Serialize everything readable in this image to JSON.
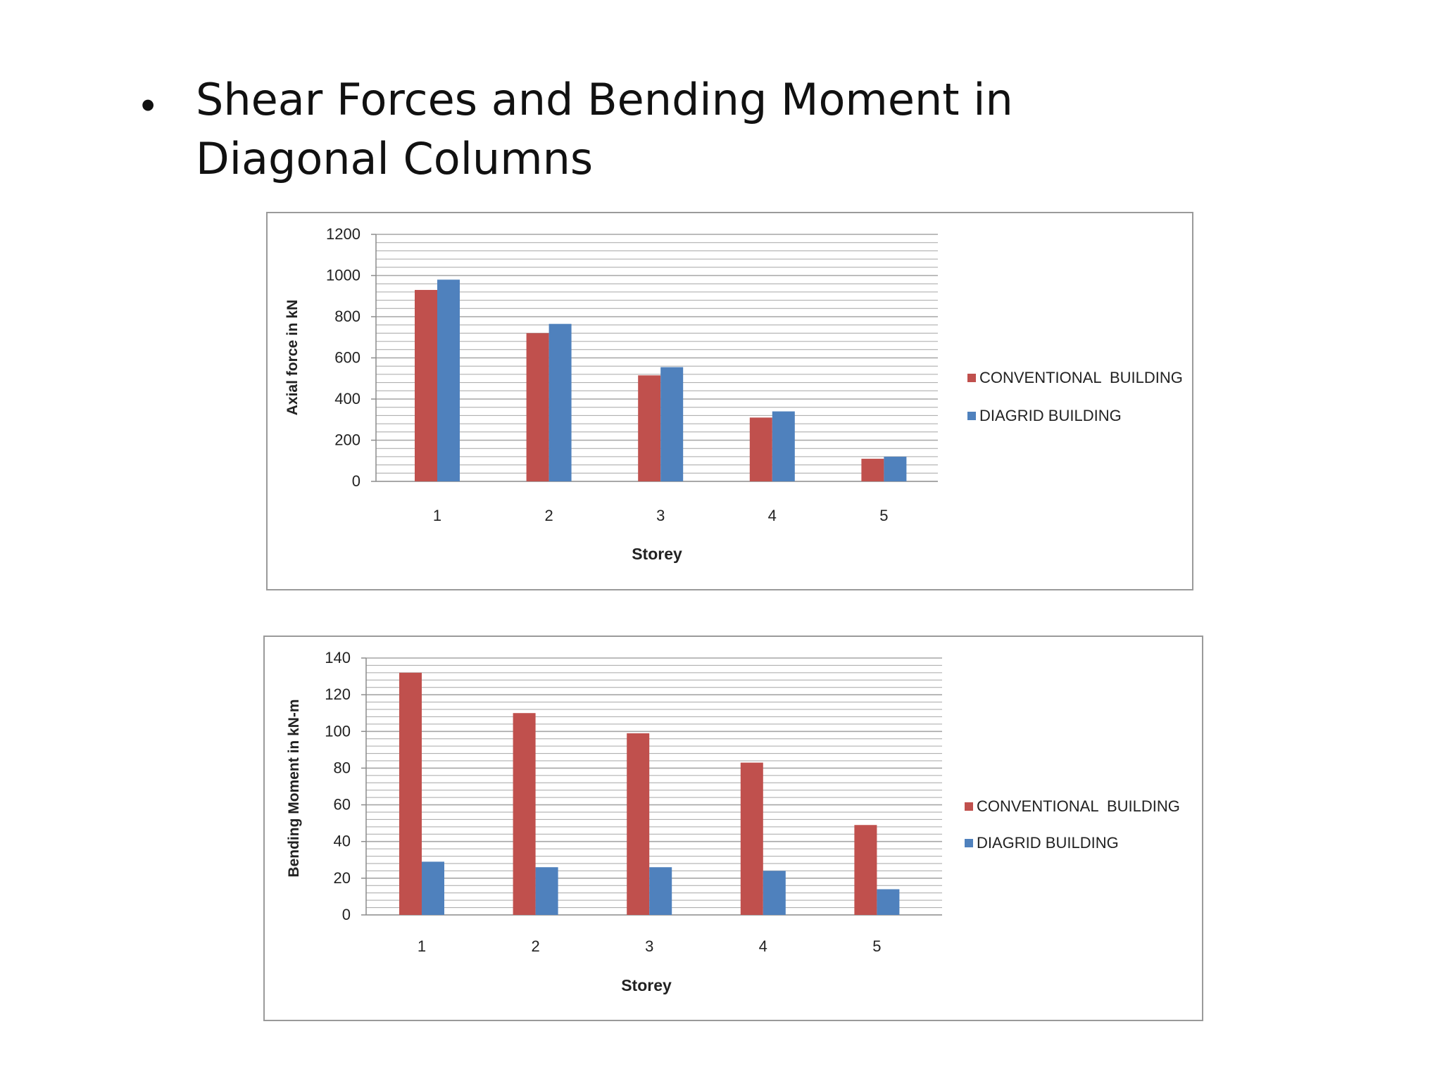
{
  "slide": {
    "bullet": "•",
    "title": "Shear Forces and Bending Moment in Diagonal Columns"
  },
  "colors": {
    "conventional": "#c0504d",
    "diagrid": "#4f81bd",
    "gridline": "#a6a6a6",
    "axis": "#8c8c8c"
  },
  "chart_data": [
    {
      "type": "bar",
      "categories": [
        "1",
        "2",
        "3",
        "4",
        "5"
      ],
      "series": [
        {
          "name": "CONVENTIONAL  BUILDING",
          "values": [
            930,
            720,
            515,
            310,
            110
          ]
        },
        {
          "name": "DIAGRID BUILDING",
          "values": [
            980,
            765,
            555,
            340,
            120
          ]
        }
      ],
      "title": "",
      "xlabel": "Storey",
      "ylabel": "Axial force in kN",
      "ylim": [
        0,
        1200
      ],
      "yticks": [
        0,
        200,
        400,
        600,
        800,
        1000,
        1200
      ],
      "minor_step": 40,
      "grid": true,
      "legend": "right"
    },
    {
      "type": "bar",
      "categories": [
        "1",
        "2",
        "3",
        "4",
        "5"
      ],
      "series": [
        {
          "name": "CONVENTIONAL  BUILDING",
          "values": [
            132,
            110,
            99,
            83,
            49
          ]
        },
        {
          "name": "DIAGRID BUILDING",
          "values": [
            29,
            26,
            26,
            24,
            14
          ]
        }
      ],
      "title": "",
      "xlabel": "Storey",
      "ylabel": "Bending Moment in kN-m",
      "ylim": [
        0,
        140
      ],
      "yticks": [
        0,
        20,
        40,
        60,
        80,
        100,
        120,
        140
      ],
      "minor_step": 4,
      "grid": true,
      "legend": "right"
    }
  ]
}
